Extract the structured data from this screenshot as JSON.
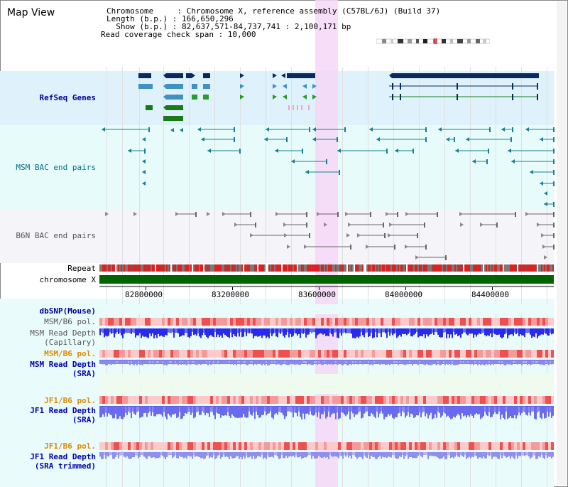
{
  "title": "Map View",
  "header": {
    "line1": "Chromosome     : Chromosome X, reference assembly (C57BL/6J) (Build 37)",
    "line2": "Length (b.p.) : 166,650,296",
    "line3": "  Show (b.p.) : 82,637,571-84,737,741 : 2,100,171 bp",
    "line4": "Read coverage check span : 10,000"
  },
  "labels": {
    "refseq": "RefSeq Genes",
    "msm_bac": "MSM BAC end pairs",
    "b6n_bac": "B6N BAC end pairs",
    "repeat": "Repeat",
    "chrom": "chromosome X",
    "dbsnp": "dbSNP(Mouse)",
    "msm_b6_pol_1": "MSM/B6 pol.",
    "msm_read_depth_cap_1": "MSM Read Depth",
    "msm_read_depth_cap_2": "(Capillary)",
    "msm_b6_pol_2": "MSM/B6 pol.",
    "msm_read_depth_sra_1": "MSM Read Depth",
    "msm_read_depth_sra_2": "(SRA)",
    "jf1_b6_pol_1": "JF1/B6 pol.",
    "jf1_read_depth_sra_1": "JF1 Read Depth",
    "jf1_read_depth_sra_2": "(SRA)",
    "jf1_b6_pol_2": "JF1/B6 pol.",
    "jf1_read_depth_trim_1": "JF1 Read Depth",
    "jf1_read_depth_trim_2": "(SRA trimmed)"
  },
  "axis": {
    "ticks": [
      "82800000",
      "83200000",
      "83600000",
      "84000000",
      "84400000"
    ]
  },
  "colors": {
    "refseq_bg": "#dff1fb",
    "msm_bg": "#e8fbfb",
    "b6n_bg": "#f5f5f9",
    "lower_bg": "#e9fbfb",
    "highlight": "#f6d7f6",
    "gene_navy": "#0b2a5c",
    "gene_light": "#3f92c2",
    "gene_green": "#1a7a1a",
    "bac_teal": "#1a7f8f",
    "bac_gray": "#666666",
    "chrom_green": "#006400",
    "depth_blue": "#2a2aee",
    "depth_light": "#8080ee"
  }
}
